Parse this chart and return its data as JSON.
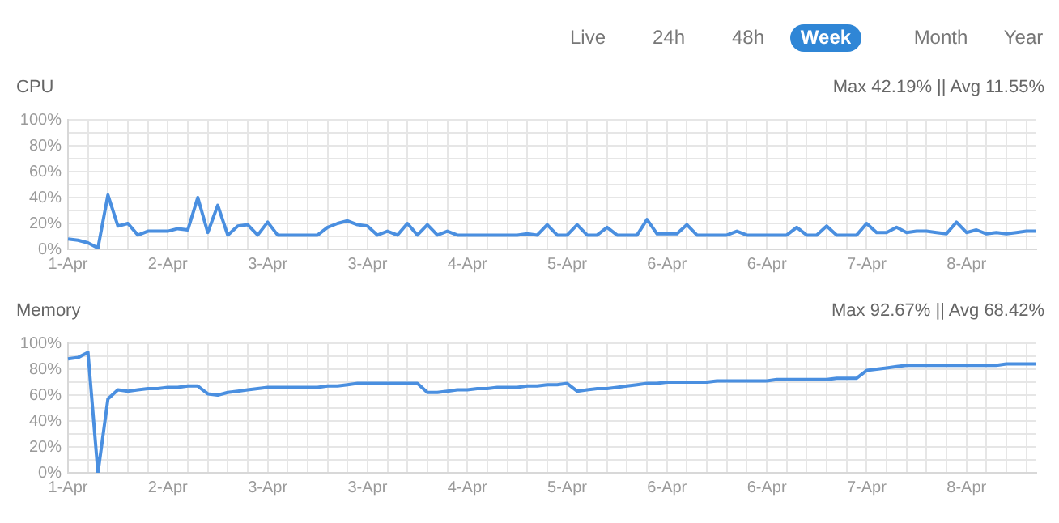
{
  "chart_data": [
    {
      "type": "other",
      "annotations": [
        "Live",
        "24h",
        "48h",
        "Week",
        "Month",
        "Year"
      ]
    },
    {
      "type": "line",
      "title": "CPU",
      "subtitle": "Max 42.19% || Avg 11.55%",
      "grid": true,
      "legend": false,
      "categories": [
        "1-Apr",
        null,
        null,
        null,
        null,
        null,
        null,
        null,
        null,
        null,
        "2-Apr",
        null,
        null,
        null,
        null,
        null,
        null,
        null,
        null,
        null,
        "3-Apr",
        null,
        null,
        null,
        null,
        null,
        null,
        null,
        null,
        null,
        "3-Apr",
        null,
        null,
        null,
        null,
        null,
        null,
        null,
        null,
        null,
        "4-Apr",
        null,
        null,
        null,
        null,
        null,
        null,
        null,
        null,
        null,
        "5-Apr",
        null,
        null,
        null,
        null,
        null,
        null,
        null,
        null,
        null,
        "6-Apr",
        null,
        null,
        null,
        null,
        null,
        null,
        null,
        null,
        null,
        "6-Apr",
        null,
        null,
        null,
        null,
        null,
        null,
        null,
        null,
        null,
        "7-Apr",
        null,
        null,
        null,
        null,
        null,
        null,
        null,
        null,
        null,
        "8-Apr",
        null,
        null,
        null,
        null,
        null,
        null,
        null
      ],
      "series": [
        {
          "color": "#4a8fe0",
          "values": [
            8,
            7,
            5,
            1,
            42,
            18,
            20,
            11,
            14,
            14,
            14,
            16,
            15,
            40,
            13,
            34,
            11,
            18,
            19,
            11,
            21,
            11,
            11,
            11,
            11,
            11,
            17,
            20,
            22,
            19,
            18,
            11,
            14,
            11,
            20,
            11,
            19,
            11,
            14,
            11,
            11,
            11,
            11,
            11,
            11,
            11,
            12,
            11,
            19,
            11,
            11,
            19,
            11,
            11,
            17,
            11,
            11,
            11,
            23,
            12,
            12,
            12,
            19,
            11,
            11,
            11,
            11,
            14,
            11,
            11,
            11,
            11,
            11,
            17,
            11,
            11,
            18,
            11,
            11,
            11,
            20,
            13,
            13,
            17,
            13,
            14,
            14,
            13,
            12,
            21,
            13,
            15,
            12,
            13,
            12,
            13,
            14,
            14
          ]
        }
      ],
      "ylim": [
        0,
        100
      ],
      "yticks": [
        {
          "value": 0,
          "label": "0%"
        },
        {
          "value": 10,
          "label": null
        },
        {
          "value": 20,
          "label": "20%"
        },
        {
          "value": 30,
          "label": null
        },
        {
          "value": 40,
          "label": "40%"
        },
        {
          "value": 50,
          "label": null
        },
        {
          "value": 60,
          "label": "60%"
        },
        {
          "value": 70,
          "label": null
        },
        {
          "value": 80,
          "label": "80%"
        },
        {
          "value": 90,
          "label": null
        },
        {
          "value": 100,
          "label": "100%"
        }
      ]
    },
    {
      "type": "line",
      "title": "Memory",
      "subtitle": "Max 92.67% || Avg 68.42%",
      "grid": true,
      "legend": false,
      "categories": [
        "1-Apr",
        null,
        null,
        null,
        null,
        null,
        null,
        null,
        null,
        null,
        "2-Apr",
        null,
        null,
        null,
        null,
        null,
        null,
        null,
        null,
        null,
        "3-Apr",
        null,
        null,
        null,
        null,
        null,
        null,
        null,
        null,
        null,
        "3-Apr",
        null,
        null,
        null,
        null,
        null,
        null,
        null,
        null,
        null,
        "4-Apr",
        null,
        null,
        null,
        null,
        null,
        null,
        null,
        null,
        null,
        "5-Apr",
        null,
        null,
        null,
        null,
        null,
        null,
        null,
        null,
        null,
        "6-Apr",
        null,
        null,
        null,
        null,
        null,
        null,
        null,
        null,
        null,
        "6-Apr",
        null,
        null,
        null,
        null,
        null,
        null,
        null,
        null,
        null,
        "7-Apr",
        null,
        null,
        null,
        null,
        null,
        null,
        null,
        null,
        null,
        "8-Apr",
        null,
        null,
        null,
        null,
        null,
        null,
        null
      ],
      "series": [
        {
          "color": "#4a8fe0",
          "values": [
            88,
            89,
            93,
            0,
            57,
            64,
            63,
            64,
            65,
            65,
            66,
            66,
            67,
            67,
            61,
            60,
            62,
            63,
            64,
            65,
            66,
            66,
            66,
            66,
            66,
            66,
            67,
            67,
            68,
            69,
            69,
            69,
            69,
            69,
            69,
            69,
            62,
            62,
            63,
            64,
            64,
            65,
            65,
            66,
            66,
            66,
            67,
            67,
            68,
            68,
            69,
            63,
            64,
            65,
            65,
            66,
            67,
            68,
            69,
            69,
            70,
            70,
            70,
            70,
            70,
            71,
            71,
            71,
            71,
            71,
            71,
            72,
            72,
            72,
            72,
            72,
            72,
            73,
            73,
            73,
            79,
            80,
            81,
            82,
            83,
            83,
            83,
            83,
            83,
            83,
            83,
            83,
            83,
            83,
            84,
            84,
            84,
            84
          ]
        }
      ],
      "ylim": [
        0,
        100
      ],
      "yticks": [
        {
          "value": 0,
          "label": "0%"
        },
        {
          "value": 10,
          "label": null
        },
        {
          "value": 20,
          "label": "20%"
        },
        {
          "value": 30,
          "label": null
        },
        {
          "value": 40,
          "label": "40%"
        },
        {
          "value": 50,
          "label": null
        },
        {
          "value": 60,
          "label": "60%"
        },
        {
          "value": 70,
          "label": null
        },
        {
          "value": 80,
          "label": "80%"
        },
        {
          "value": 90,
          "label": null
        },
        {
          "value": 100,
          "label": "100%"
        }
      ]
    }
  ]
}
